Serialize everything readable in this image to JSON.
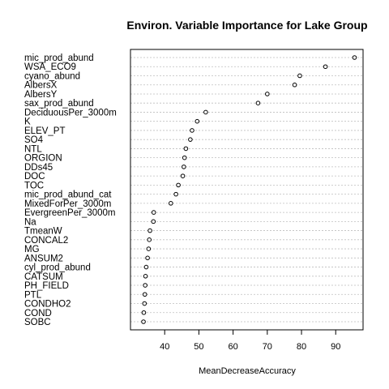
{
  "chart_data": {
    "type": "scatter",
    "subtype": "dotchart",
    "title": "Environ. Variable Importance for Lake Group",
    "xlabel": "MeanDecreaseAccuracy",
    "ylabel": "",
    "xlim": [
      30,
      98
    ],
    "xticks": [
      40,
      50,
      60,
      70,
      80,
      90
    ],
    "grid": true,
    "legend": "none",
    "colors": {
      "points": "#000000",
      "grid": "#bfbfbf",
      "frame": "#000000"
    },
    "points": [
      {
        "label": "mic_prod_abund",
        "value": 95.5
      },
      {
        "label": "WSA_ECO9",
        "value": 87.0
      },
      {
        "label": "cyano_abund",
        "value": 79.5
      },
      {
        "label": "AlbersX",
        "value": 78.0
      },
      {
        "label": "AlbersY",
        "value": 70.0
      },
      {
        "label": "sax_prod_abund",
        "value": 67.3
      },
      {
        "label": "DeciduousPer_3000m",
        "value": 52.0
      },
      {
        "label": "K",
        "value": 49.5
      },
      {
        "label": "ELEV_PT",
        "value": 48.0
      },
      {
        "label": "SO4",
        "value": 47.5
      },
      {
        "label": "NTL",
        "value": 46.2
      },
      {
        "label": "ORGION",
        "value": 45.8
      },
      {
        "label": "DDs45",
        "value": 45.6
      },
      {
        "label": "DOC",
        "value": 45.3
      },
      {
        "label": "TOC",
        "value": 44.0
      },
      {
        "label": "mic_prod_abund_cat",
        "value": 43.3
      },
      {
        "label": "MixedForPer_3000m",
        "value": 41.8
      },
      {
        "label": "EvergreenPer_3000m",
        "value": 36.8
      },
      {
        "label": "Na",
        "value": 36.7
      },
      {
        "label": "TmeanW",
        "value": 35.7
      },
      {
        "label": "CONCAL2",
        "value": 35.5
      },
      {
        "label": "MG",
        "value": 35.3
      },
      {
        "label": "ANSUM2",
        "value": 35.0
      },
      {
        "label": "cyl_prod_abund",
        "value": 34.6
      },
      {
        "label": "CATSUM",
        "value": 34.4
      },
      {
        "label": "PH_FIELD",
        "value": 34.3
      },
      {
        "label": "PTL",
        "value": 34.2
      },
      {
        "label": "CONDHO2",
        "value": 34.1
      },
      {
        "label": "COND",
        "value": 33.9
      },
      {
        "label": "SOBC",
        "value": 33.8
      }
    ]
  }
}
